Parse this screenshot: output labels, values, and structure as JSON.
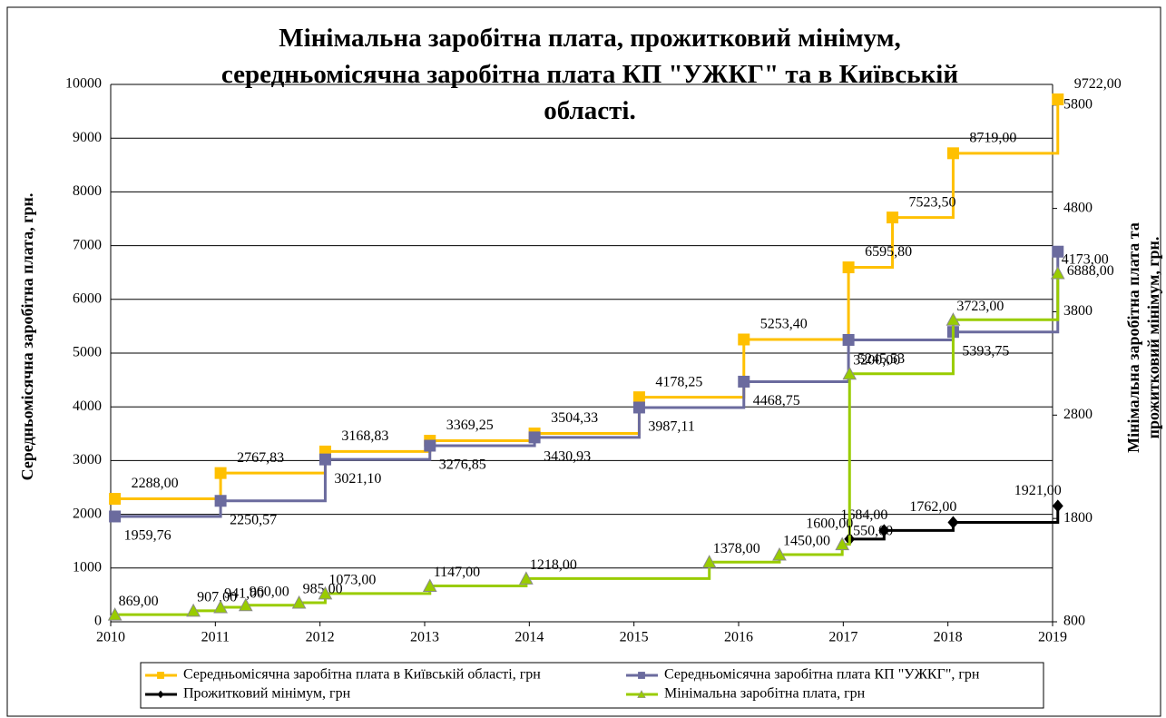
{
  "chart_data": {
    "type": "line",
    "title": "Мінімальна заробітна плата, прожитковий мінімум, середньомісячна заробітна плата КП \"УЖКГ\" та в Київській області.",
    "y_label": "Середньомісячна заробітна плата, грн.",
    "y2_label": "Мінімальна заробітна плата та прожитковий мінімум, грн.",
    "xlim": [
      2010,
      2019
    ],
    "xticks": [
      2010,
      2011,
      2012,
      2013,
      2014,
      2015,
      2016,
      2017,
      2018,
      2019
    ],
    "ylim": [
      0,
      10000
    ],
    "yticks": [
      0,
      1000,
      2000,
      3000,
      4000,
      5000,
      6000,
      7000,
      8000,
      9000,
      10000
    ],
    "y2lim": [
      800,
      6000
    ],
    "y2ticks": [
      800,
      1800,
      2800,
      3800,
      4800,
      5800
    ],
    "grid": true,
    "legend": "bottom",
    "series": [
      {
        "name": "Середньомісячна заробітна плата в Київській області, грн",
        "color": "#FFC000",
        "marker": "square",
        "x": [
          2010.04,
          2011.05,
          2012.05,
          2013.05,
          2014.05,
          2015.05,
          2016.05,
          2017.05,
          2017.47,
          2018.05,
          2019.05
        ],
        "values": [
          2288,
          2767.83,
          3168.83,
          3369.25,
          3504.33,
          4178.25,
          5253.4,
          6595.8,
          7523.5,
          8719,
          9722
        ],
        "value_labels": [
          "2288,00",
          "2767,83",
          "3168,83",
          "3369,25",
          "3504,33",
          "4178,25",
          "5253,40",
          "6595,80",
          "7523,50",
          "8719,00",
          "9722,00"
        ]
      },
      {
        "name": "Середньомісячна заробітна плата КП \"УЖКГ\", грн",
        "color": "#6B6B9E",
        "marker": "square",
        "x": [
          2010.04,
          2011.05,
          2012.05,
          2013.05,
          2014.05,
          2015.05,
          2016.05,
          2017.05,
          2018.05,
          2019.05
        ],
        "values": [
          1959.76,
          2250.57,
          3021.1,
          3276.85,
          3430.93,
          3987.11,
          4468.75,
          5245.53,
          5393.75,
          6888
        ],
        "value_labels": [
          "1959,76",
          "2250,57",
          "3021,10",
          "3276,85",
          "3430,93",
          "3987,11",
          "4468,75",
          "5245,53",
          "5393,75",
          "6888,00"
        ]
      },
      {
        "name": "Прожитковий мінімум, грн",
        "color": "#000000",
        "marker": "diamond",
        "axis": "y2",
        "x": [
          2017.06,
          2017.39,
          2018.05,
          2019.05
        ],
        "values": [
          1600,
          1684,
          1762,
          1921
        ],
        "value_labels": [
          "1600,00",
          "1684,00",
          "1762,00",
          "1921,00"
        ]
      },
      {
        "name": "Мінімальна заробітна плата, грн",
        "color": "#99CC00",
        "marker": "triangle",
        "axis": "y2",
        "x": [
          2010.04,
          2010.79,
          2011.05,
          2011.29,
          2011.8,
          2012.05,
          2013.05,
          2013.97,
          2015.72,
          2016.39,
          2016.99,
          2017.06,
          2018.05,
          2019.05
        ],
        "values": [
          869,
          907,
          941,
          960,
          985,
          1073,
          1147,
          1218,
          1378,
          1450,
          1550,
          3200,
          3723,
          4173
        ],
        "value_labels": [
          "869,00",
          "907,00",
          "941,00",
          "960,00",
          "985,00",
          "1073,00",
          "1147,00",
          "1218,00",
          "1378,00",
          "1450,00",
          "1550,00",
          "3200,00",
          "3723,00",
          "4173,00"
        ]
      }
    ]
  }
}
